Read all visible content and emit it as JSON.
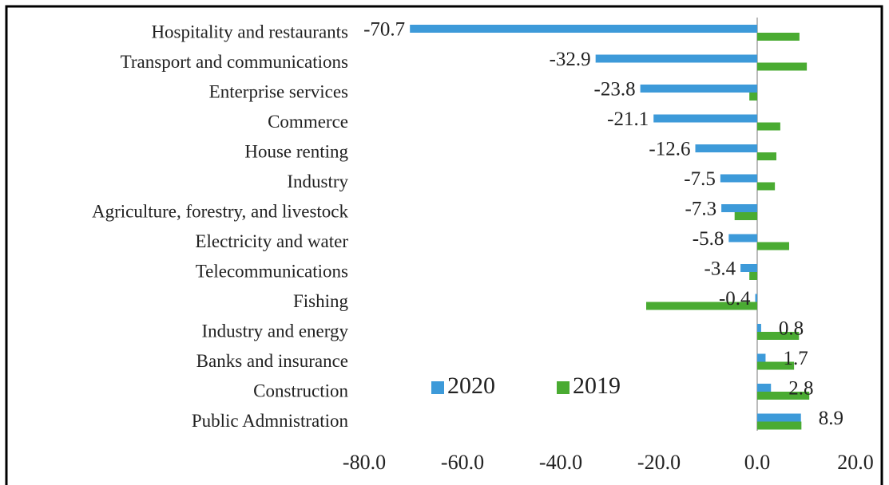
{
  "chart_data": {
    "type": "hbar",
    "categories": [
      "Hospitality and restaurants",
      "Transport and communications",
      "Enterprise services",
      "Commerce",
      "House renting",
      "Industry",
      "Agriculture, forestry, and livestock",
      "Electricity and water",
      "Telecommunications",
      "Fishing",
      "Industry and energy",
      "Banks and insurance",
      "Construction",
      "Public Admnistration"
    ],
    "series": [
      {
        "name": "2020",
        "color": "#3d9ad9",
        "values": [
          -70.7,
          -32.9,
          -23.8,
          -21.1,
          -12.6,
          -7.5,
          -7.3,
          -5.8,
          -3.4,
          -0.4,
          0.8,
          1.7,
          2.8,
          8.9
        ]
      },
      {
        "name": "2019",
        "color": "#4aab32",
        "values": [
          8.6,
          10.1,
          -1.6,
          4.7,
          3.9,
          3.6,
          -4.6,
          6.5,
          -1.6,
          -22.6,
          8.5,
          7.5,
          10.6,
          9.0
        ]
      }
    ],
    "data_labels_series": 0,
    "xlim": [
      -80,
      20
    ],
    "xticks": [
      {
        "value": -80,
        "label": "-80.0"
      },
      {
        "value": -60,
        "label": "-60.0"
      },
      {
        "value": -40,
        "label": "-40.0"
      },
      {
        "value": -20,
        "label": "-20.0"
      },
      {
        "value": 0,
        "label": "0.0"
      },
      {
        "value": 20,
        "label": "20.0"
      }
    ],
    "grid": false
  }
}
